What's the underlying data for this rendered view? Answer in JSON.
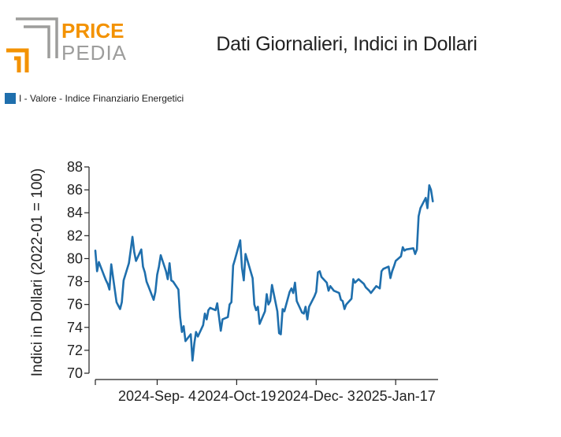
{
  "logo": {
    "word1": "PRICE",
    "word2": "PEDIA"
  },
  "colors": {
    "series": "#1f6fad",
    "logo_orange": "#f39200",
    "logo_gray": "#9d9d9c"
  },
  "chart_data": {
    "type": "line",
    "title": "Dati Giornalieri, Indici in Dollari",
    "xlabel": "",
    "ylabel": "Indici in Dollari (2022-01 = 100)",
    "ylim": [
      70,
      88
    ],
    "yticks": [
      70,
      72,
      74,
      76,
      78,
      80,
      82,
      84,
      86,
      88
    ],
    "xlim": [
      "2024-07-31",
      "2025-02-10"
    ],
    "xticks": [
      {
        "date": "2024-07-31",
        "label": ""
      },
      {
        "date": "2024-09-04",
        "label": "2024-Sep- 4"
      },
      {
        "date": "2024-10-19",
        "label": "2024-Oct-19"
      },
      {
        "date": "2024-12-03",
        "label": "2024-Dec- 3"
      },
      {
        "date": "2025-01-17",
        "label": "2025-Jan-17"
      }
    ],
    "legend_position": "top-left",
    "series": [
      {
        "name": "I - Valore - Indice Finanziario Energetici",
        "color": "#1f6fad",
        "points": [
          [
            "2024-07-31",
            80.7
          ],
          [
            "2024-08-01",
            78.9
          ],
          [
            "2024-08-02",
            79.7
          ],
          [
            "2024-08-05",
            78.5
          ],
          [
            "2024-08-06",
            78.1
          ],
          [
            "2024-08-07",
            77.8
          ],
          [
            "2024-08-08",
            77.3
          ],
          [
            "2024-08-09",
            79.5
          ],
          [
            "2024-08-12",
            76.2
          ],
          [
            "2024-08-13",
            75.9
          ],
          [
            "2024-08-14",
            75.6
          ],
          [
            "2024-08-15",
            76.2
          ],
          [
            "2024-08-16",
            78.1
          ],
          [
            "2024-08-19",
            79.6
          ],
          [
            "2024-08-20",
            80.7
          ],
          [
            "2024-08-21",
            81.9
          ],
          [
            "2024-08-22",
            80.6
          ],
          [
            "2024-08-23",
            79.8
          ],
          [
            "2024-08-26",
            80.8
          ],
          [
            "2024-08-27",
            79.3
          ],
          [
            "2024-08-28",
            78.8
          ],
          [
            "2024-08-29",
            78.0
          ],
          [
            "2024-08-30",
            77.6
          ],
          [
            "2024-09-02",
            76.4
          ],
          [
            "2024-09-03",
            77.1
          ],
          [
            "2024-09-04",
            78.6
          ],
          [
            "2024-09-05",
            79.3
          ],
          [
            "2024-09-06",
            80.3
          ],
          [
            "2024-09-09",
            78.9
          ],
          [
            "2024-09-10",
            78.2
          ],
          [
            "2024-09-11",
            79.6
          ],
          [
            "2024-09-12",
            78.1
          ],
          [
            "2024-09-13",
            78.0
          ],
          [
            "2024-09-16",
            77.3
          ],
          [
            "2024-09-17",
            74.9
          ],
          [
            "2024-09-18",
            73.6
          ],
          [
            "2024-09-19",
            74.1
          ],
          [
            "2024-09-20",
            72.8
          ],
          [
            "2024-09-23",
            73.4
          ],
          [
            "2024-09-24",
            71.1
          ],
          [
            "2024-09-25",
            72.6
          ],
          [
            "2024-09-26",
            73.6
          ],
          [
            "2024-09-27",
            73.2
          ],
          [
            "2024-09-30",
            74.2
          ],
          [
            "2024-10-01",
            75.2
          ],
          [
            "2024-10-02",
            74.7
          ],
          [
            "2024-10-03",
            75.5
          ],
          [
            "2024-10-04",
            75.7
          ],
          [
            "2024-10-07",
            75.5
          ],
          [
            "2024-10-08",
            76.1
          ],
          [
            "2024-10-09",
            74.9
          ],
          [
            "2024-10-10",
            73.7
          ],
          [
            "2024-10-11",
            74.7
          ],
          [
            "2024-10-14",
            74.9
          ],
          [
            "2024-10-15",
            76.0
          ],
          [
            "2024-10-16",
            76.2
          ],
          [
            "2024-10-17",
            79.4
          ],
          [
            "2024-10-18",
            79.9
          ],
          [
            "2024-10-21",
            81.6
          ],
          [
            "2024-10-22",
            79.2
          ],
          [
            "2024-10-23",
            78.1
          ],
          [
            "2024-10-24",
            80.4
          ],
          [
            "2024-10-25",
            79.9
          ],
          [
            "2024-10-28",
            78.3
          ],
          [
            "2024-10-29",
            76.0
          ],
          [
            "2024-10-30",
            75.5
          ],
          [
            "2024-10-31",
            75.8
          ],
          [
            "2024-11-01",
            74.3
          ],
          [
            "2024-11-04",
            75.4
          ],
          [
            "2024-11-05",
            76.9
          ],
          [
            "2024-11-06",
            76.0
          ],
          [
            "2024-11-07",
            76.3
          ],
          [
            "2024-11-08",
            77.7
          ],
          [
            "2024-11-11",
            75.4
          ],
          [
            "2024-11-12",
            73.5
          ],
          [
            "2024-11-13",
            73.4
          ],
          [
            "2024-11-14",
            75.6
          ],
          [
            "2024-11-15",
            75.4
          ],
          [
            "2024-11-18",
            77.1
          ],
          [
            "2024-11-19",
            77.4
          ],
          [
            "2024-11-20",
            77.0
          ],
          [
            "2024-11-21",
            77.9
          ],
          [
            "2024-11-22",
            76.3
          ],
          [
            "2024-11-25",
            75.3
          ],
          [
            "2024-11-26",
            75.2
          ],
          [
            "2024-11-27",
            75.8
          ],
          [
            "2024-11-28",
            74.7
          ],
          [
            "2024-11-29",
            75.8
          ],
          [
            "2024-12-02",
            76.7
          ],
          [
            "2024-12-03",
            77.1
          ],
          [
            "2024-12-04",
            78.8
          ],
          [
            "2024-12-05",
            78.9
          ],
          [
            "2024-12-06",
            78.4
          ],
          [
            "2024-12-09",
            77.9
          ],
          [
            "2024-12-10",
            77.2
          ],
          [
            "2024-12-11",
            77.6
          ],
          [
            "2024-12-12",
            77.4
          ],
          [
            "2024-12-13",
            77.2
          ],
          [
            "2024-12-16",
            77.0
          ],
          [
            "2024-12-17",
            76.4
          ],
          [
            "2024-12-18",
            76.3
          ],
          [
            "2024-12-19",
            75.6
          ],
          [
            "2024-12-20",
            76.0
          ],
          [
            "2024-12-23",
            76.5
          ],
          [
            "2024-12-24",
            78.2
          ],
          [
            "2024-12-25",
            77.9
          ],
          [
            "2024-12-27",
            78.2
          ],
          [
            "2024-12-30",
            77.8
          ],
          [
            "2024-12-31",
            77.5
          ],
          [
            "2025-01-02",
            77.2
          ],
          [
            "2025-01-03",
            77.0
          ],
          [
            "2025-01-06",
            77.6
          ],
          [
            "2025-01-07",
            77.5
          ],
          [
            "2025-01-08",
            77.4
          ],
          [
            "2025-01-09",
            78.9
          ],
          [
            "2025-01-10",
            79.1
          ],
          [
            "2025-01-13",
            79.3
          ],
          [
            "2025-01-14",
            78.3
          ],
          [
            "2025-01-15",
            78.9
          ],
          [
            "2025-01-16",
            79.3
          ],
          [
            "2025-01-17",
            79.8
          ],
          [
            "2025-01-20",
            80.2
          ],
          [
            "2025-01-21",
            81.0
          ],
          [
            "2025-01-22",
            80.7
          ],
          [
            "2025-01-23",
            80.8
          ],
          [
            "2025-01-27",
            80.9
          ],
          [
            "2025-01-28",
            80.4
          ],
          [
            "2025-01-29",
            80.8
          ],
          [
            "2025-01-30",
            83.7
          ],
          [
            "2025-01-31",
            84.4
          ],
          [
            "2025-02-03",
            85.3
          ],
          [
            "2025-02-04",
            84.4
          ],
          [
            "2025-02-05",
            86.4
          ],
          [
            "2025-02-06",
            86.0
          ],
          [
            "2025-02-07",
            85.0
          ]
        ]
      }
    ]
  }
}
